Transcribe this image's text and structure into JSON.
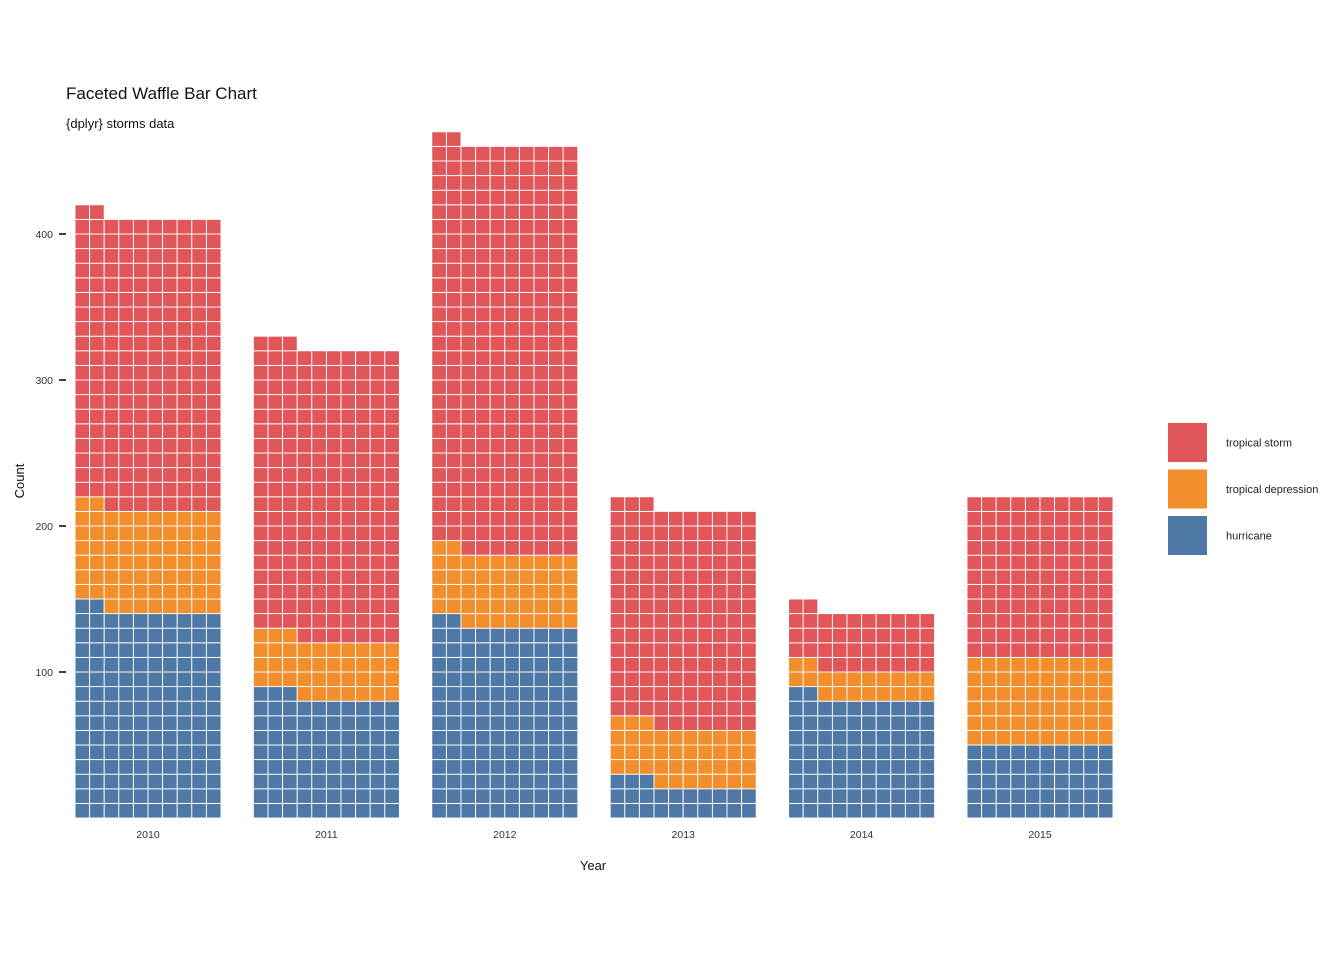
{
  "chart_data": {
    "type": "bar",
    "subtype": "waffle-stacked",
    "title": "Faceted Waffle Bar Chart",
    "subtitle": "{dplyr} storms data",
    "xlabel": "Year",
    "ylabel": "Count",
    "unit_per_square": 1,
    "squares_per_row": 10,
    "categories": [
      "2010",
      "2011",
      "2012",
      "2013",
      "2014",
      "2015"
    ],
    "series": [
      {
        "name": "hurricane",
        "color": "#4e79a7",
        "values": [
          142,
          83,
          132,
          23,
          82,
          50
        ]
      },
      {
        "name": "tropical depression",
        "color": "#f28e2b",
        "values": [
          70,
          40,
          50,
          40,
          20,
          60
        ]
      },
      {
        "name": "tropical storm",
        "color": "#e15759",
        "values": [
          200,
          200,
          280,
          150,
          40,
          110
        ]
      }
    ],
    "y_ticks": [
      100,
      200,
      300,
      400
    ],
    "ylim": [
      0,
      470
    ],
    "legend_position": "right",
    "grid": false
  }
}
